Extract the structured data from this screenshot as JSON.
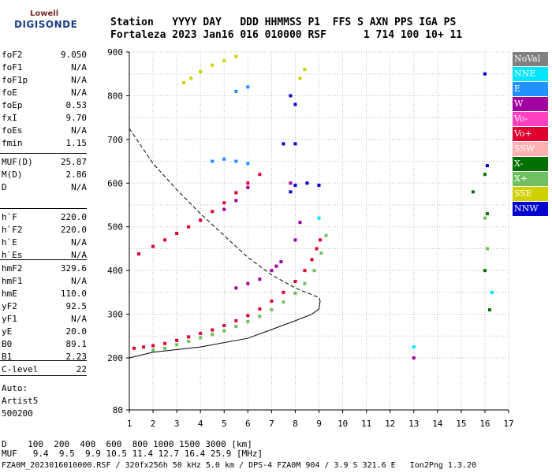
{
  "logo": {
    "line1": "Lowell",
    "line2": "DIGISONDE"
  },
  "header": {
    "labels": "Station   YYYY DAY   DDD HHMMSS P1  FFS S AXN PPS IGA PS",
    "values": "Fortaleza 2023 Jan16 016 010000 RSF      1 714 100 10+ 11"
  },
  "params_group1": [
    {
      "k": "foF2",
      "v": "9.050"
    },
    {
      "k": "foF1",
      "v": "N/A"
    },
    {
      "k": "foF1p",
      "v": "N/A"
    },
    {
      "k": "foE",
      "v": "N/A"
    },
    {
      "k": "foEp",
      "v": "0.53"
    },
    {
      "k": "fxI",
      "v": "9.70"
    },
    {
      "k": "foEs",
      "v": "N/A"
    },
    {
      "k": "fmin",
      "v": "1.15"
    }
  ],
  "params_group2": [
    {
      "k": "MUF(D)",
      "v": "25.87"
    },
    {
      "k": "M(D)",
      "v": "2.86"
    },
    {
      "k": "D",
      "v": "N/A"
    }
  ],
  "params_group3": [
    {
      "k": "h`F",
      "v": "220.0"
    },
    {
      "k": "h`F2",
      "v": "220.0"
    },
    {
      "k": "h`E",
      "v": "N/A"
    },
    {
      "k": "h`Es",
      "v": "N/A"
    }
  ],
  "params_group4": [
    {
      "k": "hmF2",
      "v": "329.6"
    },
    {
      "k": "hmF1",
      "v": "N/A"
    },
    {
      "k": "hmE",
      "v": "110.0"
    },
    {
      "k": "yF2",
      "v": "92.5"
    },
    {
      "k": "yF1",
      "v": "N/A"
    },
    {
      "k": "yE",
      "v": "20.0"
    },
    {
      "k": "B0",
      "v": "89.1"
    },
    {
      "k": "B1",
      "v": "2.23"
    }
  ],
  "params_group5": [
    {
      "k": "C-level",
      "v": "22"
    }
  ],
  "autoscaling": {
    "line1": "Auto:",
    "line2": "Artist5",
    "line3": "500200"
  },
  "legend": [
    {
      "label": "NoVal",
      "color": "#808080"
    },
    {
      "label": "NNE",
      "color": "#00e5ff"
    },
    {
      "label": "E",
      "color": "#1e90ff"
    },
    {
      "label": "W",
      "color": "#a000a0"
    },
    {
      "label": "Vo-",
      "color": "#ff40c0"
    },
    {
      "label": "Vo+",
      "color": "#e00030"
    },
    {
      "label": "SSW",
      "color": "#ffb0b0"
    },
    {
      "label": "X-",
      "color": "#007000"
    },
    {
      "label": "X+",
      "color": "#70c060"
    },
    {
      "label": "SSE",
      "color": "#d0d000"
    },
    {
      "label": "NNW",
      "color": "#0000d0"
    }
  ],
  "mufs_table": {
    "row1": "D    100  200  400  600  800 1000 1500 3000 [km]",
    "row2": "MUF   9.4  9.5  9.9 10.5 11.4 12.7 16.4 25.9 [MHz]"
  },
  "footer": "FZA0M_2023016010000.RSF / 320fx256h 50 kHz 5.0 km / DPS-4 FZA0M 904 / 3.9 S 321.6 E   Ion2Png 1.3.20",
  "chart_data": {
    "type": "scatter",
    "title": "",
    "xlabel": "",
    "ylabel": "",
    "xlim": [
      1,
      17
    ],
    "ylim": [
      80,
      900
    ],
    "x_ticks": [
      1,
      2,
      3,
      4,
      5,
      6,
      7,
      8,
      9,
      10,
      11,
      12,
      13,
      14,
      15,
      16,
      17
    ],
    "y_ticks": [
      80,
      200,
      300,
      400,
      500,
      600,
      700,
      800,
      900
    ],
    "grid": true,
    "legend_position": "right",
    "series": [
      {
        "name": "Vo+",
        "color": "#e00030",
        "points": [
          [
            1.2,
            222
          ],
          [
            1.6,
            225
          ],
          [
            2.0,
            228
          ],
          [
            2.5,
            233
          ],
          [
            3.0,
            240
          ],
          [
            3.5,
            248
          ],
          [
            4.0,
            256
          ],
          [
            4.5,
            264
          ],
          [
            5.0,
            274
          ],
          [
            5.5,
            285
          ],
          [
            6.0,
            297
          ],
          [
            6.5,
            312
          ],
          [
            7.0,
            330
          ],
          [
            7.5,
            350
          ],
          [
            8.0,
            375
          ],
          [
            8.4,
            400
          ],
          [
            8.7,
            425
          ],
          [
            8.9,
            450
          ],
          [
            9.05,
            470
          ],
          [
            1.4,
            438
          ],
          [
            2.0,
            455
          ],
          [
            2.5,
            470
          ],
          [
            3.0,
            485
          ],
          [
            3.5,
            500
          ],
          [
            4.0,
            515
          ],
          [
            4.5,
            535
          ],
          [
            5.0,
            555
          ],
          [
            5.5,
            578
          ],
          [
            6.0,
            600
          ],
          [
            6.5,
            620
          ]
        ]
      },
      {
        "name": "X+",
        "color": "#70c060",
        "points": [
          [
            2.0,
            218
          ],
          [
            2.5,
            222
          ],
          [
            3.0,
            230
          ],
          [
            3.5,
            238
          ],
          [
            4.0,
            246
          ],
          [
            4.5,
            254
          ],
          [
            5.0,
            262
          ],
          [
            5.5,
            272
          ],
          [
            6.0,
            283
          ],
          [
            6.5,
            295
          ],
          [
            7.0,
            310
          ],
          [
            7.5,
            328
          ],
          [
            8.0,
            348
          ],
          [
            8.4,
            370
          ],
          [
            8.8,
            400
          ],
          [
            9.1,
            440
          ],
          [
            9.3,
            480
          ],
          [
            16.0,
            520
          ],
          [
            16.1,
            450
          ]
        ]
      },
      {
        "name": "W",
        "color": "#a000a0",
        "points": [
          [
            5.5,
            360
          ],
          [
            6.0,
            370
          ],
          [
            6.5,
            380
          ],
          [
            7.0,
            400
          ],
          [
            7.2,
            410
          ],
          [
            7.4,
            420
          ],
          [
            8.0,
            470
          ],
          [
            8.2,
            510
          ],
          [
            5.0,
            540
          ],
          [
            5.5,
            560
          ],
          [
            6.0,
            590
          ],
          [
            7.8,
            600
          ],
          [
            13.0,
            200
          ]
        ]
      },
      {
        "name": "NNW",
        "color": "#0000d0",
        "points": [
          [
            7.8,
            580
          ],
          [
            8.0,
            595
          ],
          [
            8.5,
            600
          ],
          [
            9.0,
            595
          ],
          [
            7.5,
            690
          ],
          [
            8.0,
            690
          ],
          [
            7.8,
            800
          ],
          [
            8.0,
            780
          ],
          [
            16.0,
            850
          ],
          [
            16.1,
            640
          ]
        ]
      },
      {
        "name": "E",
        "color": "#1e90ff",
        "points": [
          [
            4.5,
            650
          ],
          [
            5.0,
            655
          ],
          [
            5.5,
            650
          ],
          [
            6.0,
            645
          ],
          [
            5.5,
            810
          ],
          [
            6.0,
            820
          ]
        ]
      },
      {
        "name": "SSE",
        "color": "#d0d000",
        "points": [
          [
            3.3,
            830
          ],
          [
            3.6,
            840
          ],
          [
            4.0,
            855
          ],
          [
            4.5,
            870
          ],
          [
            5.0,
            880
          ],
          [
            5.5,
            890
          ],
          [
            8.2,
            840
          ],
          [
            8.4,
            860
          ]
        ]
      },
      {
        "name": "X-",
        "color": "#007000",
        "points": [
          [
            15.5,
            580
          ],
          [
            16.0,
            620
          ],
          [
            16.1,
            530
          ],
          [
            16.0,
            400
          ],
          [
            16.2,
            310
          ]
        ]
      },
      {
        "name": "NNE",
        "color": "#00e5ff",
        "points": [
          [
            9.0,
            520
          ],
          [
            13.0,
            225
          ],
          [
            16.3,
            350
          ]
        ]
      }
    ],
    "profile_dashed": {
      "x": [
        1.0,
        2.0,
        3.0,
        4.0,
        5.0,
        6.0,
        7.0,
        8.0,
        9.0,
        9.05
      ],
      "y": [
        725,
        645,
        585,
        530,
        480,
        430,
        390,
        360,
        338,
        330
      ]
    },
    "profile_solid": {
      "x": [
        1.0,
        2.0,
        4.0,
        6.0,
        7.0,
        8.0,
        8.7,
        9.0,
        9.05
      ],
      "y": [
        200,
        213,
        225,
        245,
        265,
        285,
        300,
        312,
        330
      ]
    }
  }
}
